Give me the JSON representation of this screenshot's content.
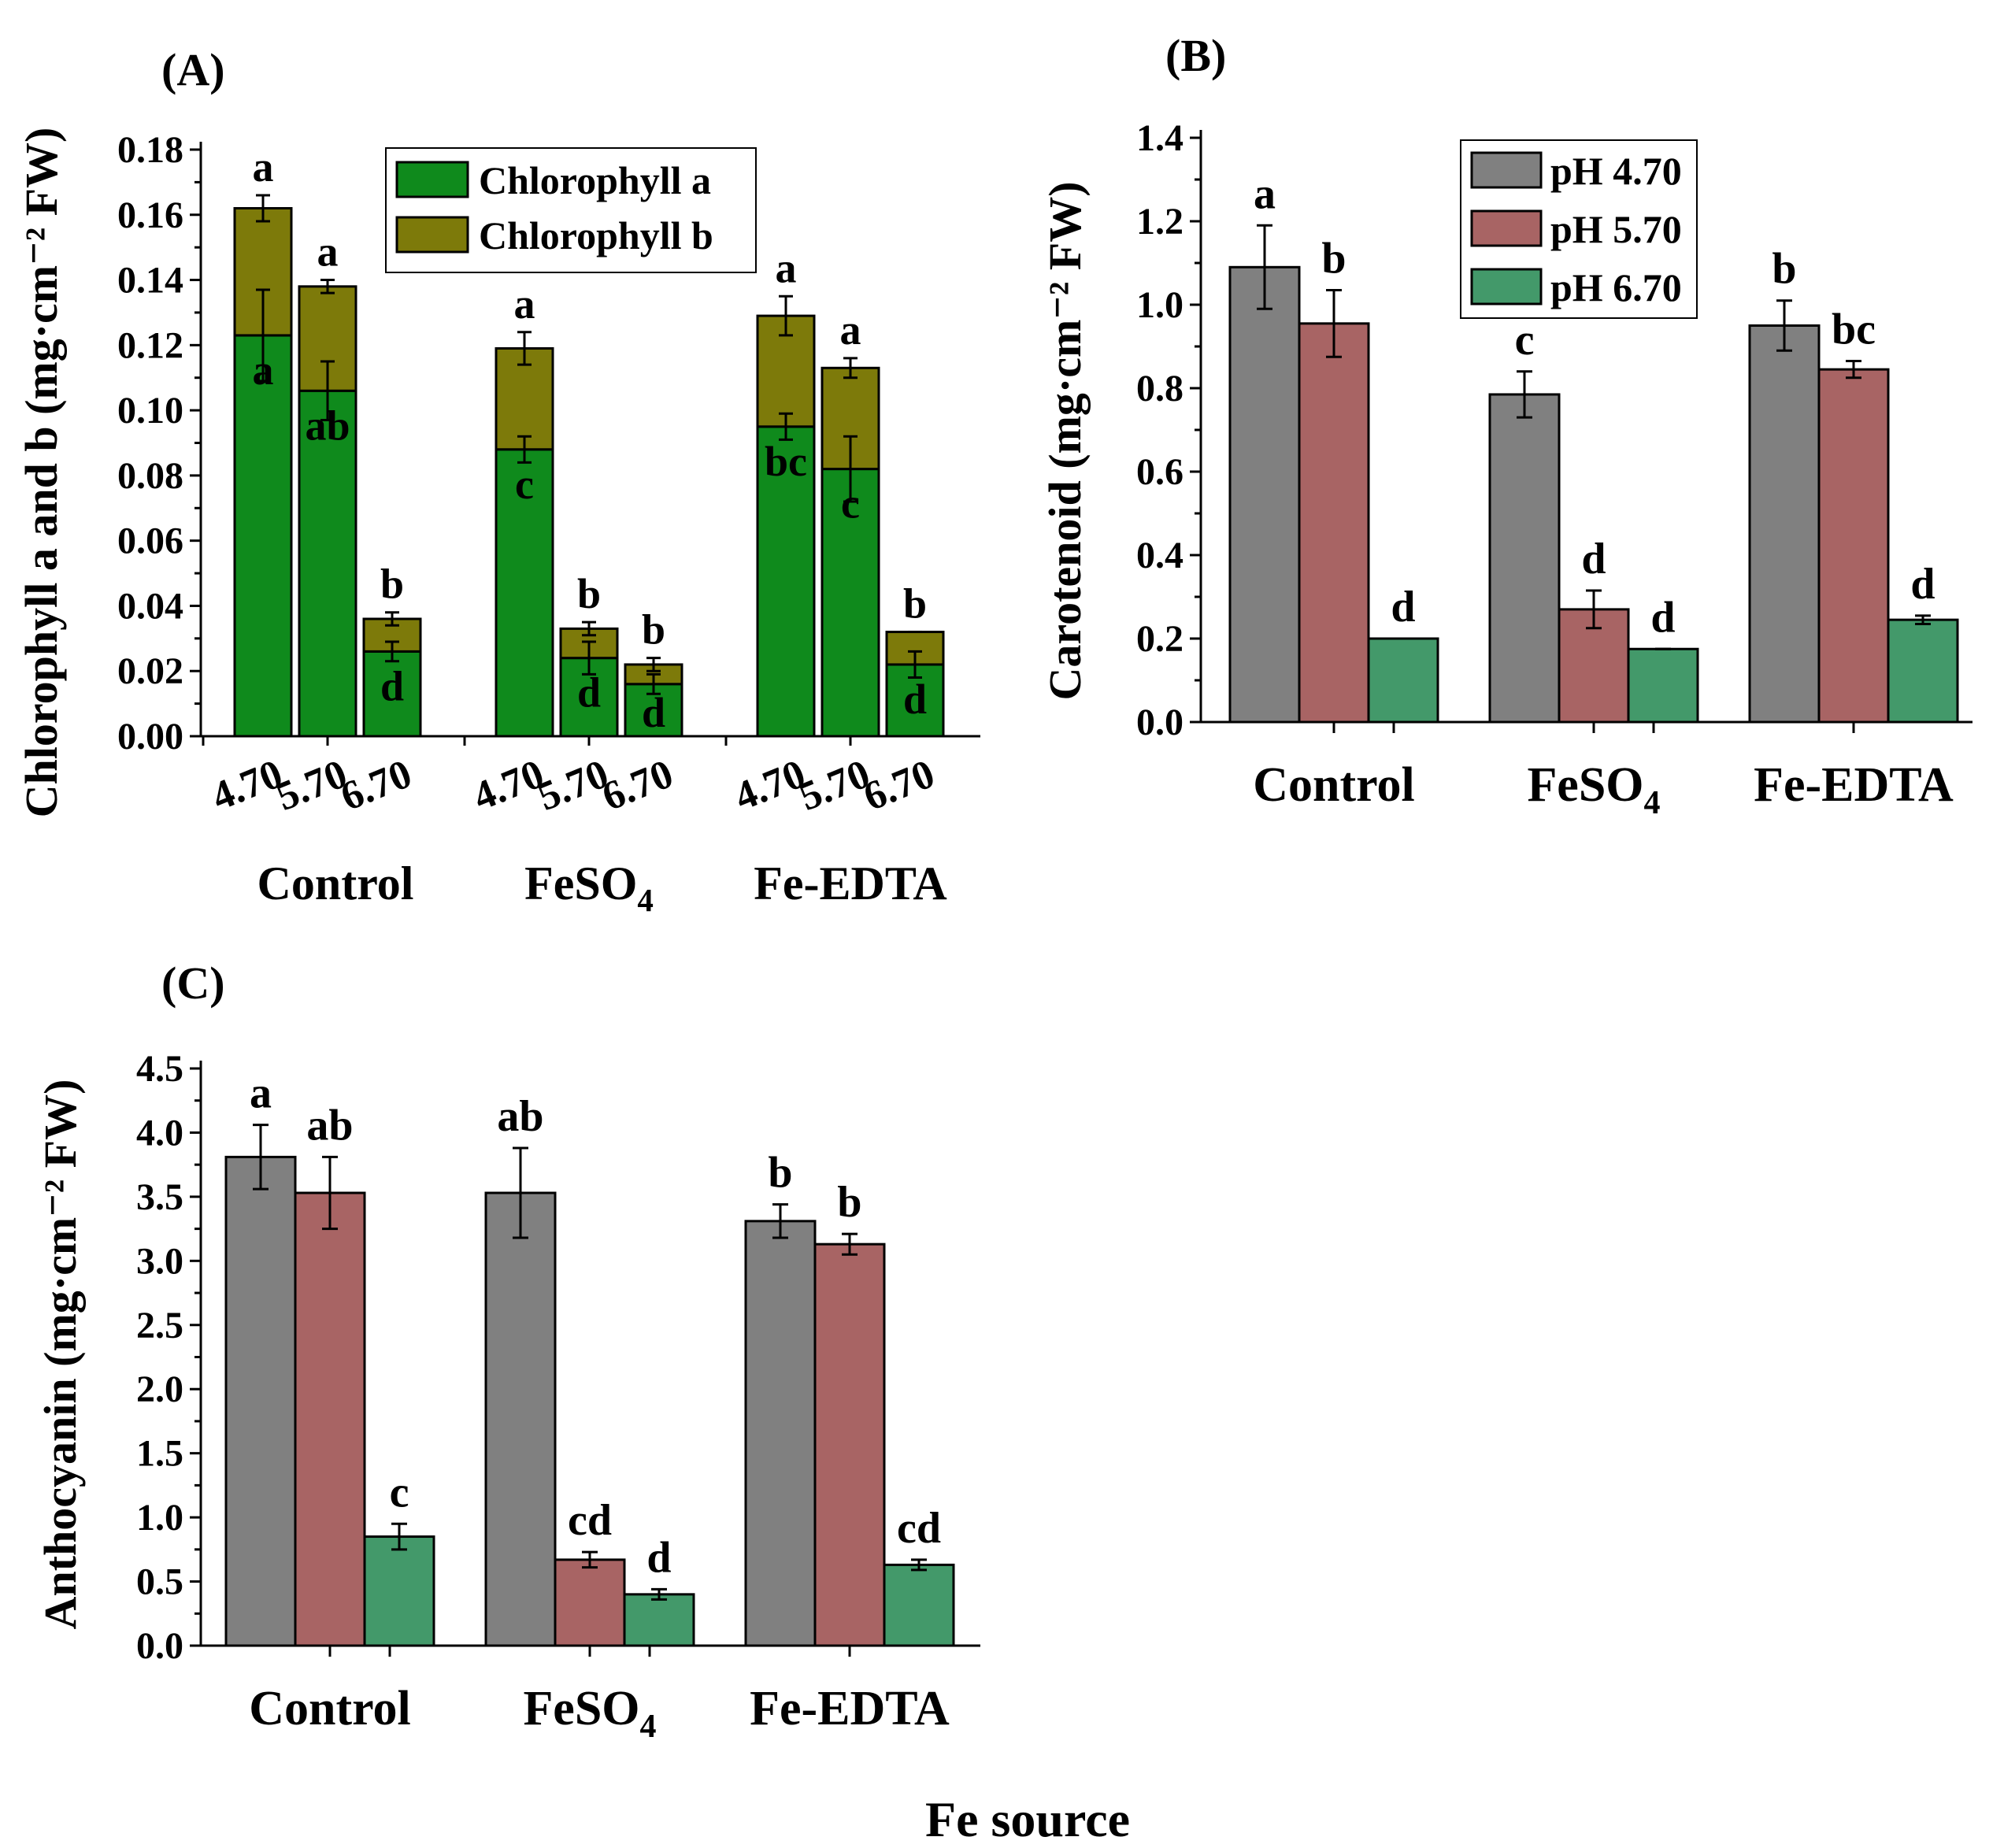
{
  "shared_xlabel": "Fe source",
  "colors": {
    "chl_a": "#0f8a1c",
    "chl_b": "#7d7a0a",
    "ph470": "#808080",
    "ph570": "#a86464",
    "ph670": "#43996a"
  },
  "chart_data": [
    {
      "panel": "(A)",
      "type": "bar",
      "stacked": true,
      "ylabel": "Chlorophyll a and b (mg·cm⁻² FW)",
      "ylim": [
        0,
        0.18
      ],
      "yticks": [
        "0.00",
        "0.02",
        "0.04",
        "0.06",
        "0.08",
        "0.10",
        "0.12",
        "0.14",
        "0.16",
        "0.18"
      ],
      "groups": [
        "Control",
        "FeSO₄",
        "Fe-EDTA"
      ],
      "subcategories": [
        "4.70",
        "5.70",
        "6.70"
      ],
      "legend": {
        "position": "top-right",
        "entries": [
          "Chlorophyll a",
          "Chlorophyll b"
        ]
      },
      "series": [
        {
          "name": "Chlorophyll a",
          "values": [
            0.123,
            0.106,
            0.026,
            0.088,
            0.024,
            0.016,
            0.095,
            0.082,
            0.022
          ],
          "errors": [
            0.014,
            0.009,
            0.003,
            0.004,
            0.005,
            0.003,
            0.004,
            0.01,
            0.004
          ],
          "letters": [
            "a",
            "ab",
            "d",
            "c",
            "d",
            "d",
            "bc",
            "c",
            "d"
          ]
        },
        {
          "name": "Chlorophyll b",
          "values": [
            0.039,
            0.032,
            0.01,
            0.031,
            0.009,
            0.006,
            0.034,
            0.031,
            0.01
          ],
          "errors": [
            0.004,
            0.002,
            0.002,
            0.005,
            0.002,
            0.002,
            0.006,
            0.003,
            0.0
          ],
          "letters": [
            "a",
            "a",
            "b",
            "a",
            "b",
            "b",
            "a",
            "a",
            "b"
          ]
        }
      ]
    },
    {
      "panel": "(B)",
      "type": "bar",
      "ylabel": "Carotenoid (mg·cm⁻² FW)",
      "ylim": [
        0,
        1.4
      ],
      "yticks": [
        "0.0",
        "0.2",
        "0.4",
        "0.6",
        "0.8",
        "1.0",
        "1.2",
        "1.4"
      ],
      "categories": [
        "Control",
        "FeSO₄",
        "Fe-EDTA"
      ],
      "legend": {
        "position": "top-center",
        "entries": [
          "pH 4.70",
          "pH 5.70",
          "pH 6.70"
        ]
      },
      "series": [
        {
          "name": "pH 4.70",
          "values": [
            1.09,
            0.785,
            0.95
          ],
          "errors": [
            0.1,
            0.055,
            0.06
          ],
          "letters": [
            "a",
            "c",
            "b"
          ]
        },
        {
          "name": "pH 5.70",
          "values": [
            0.955,
            0.27,
            0.845
          ],
          "errors": [
            0.08,
            0.045,
            0.02
          ],
          "letters": [
            "b",
            "d",
            "bc"
          ]
        },
        {
          "name": "pH 6.70",
          "values": [
            0.2,
            0.175,
            0.245
          ],
          "errors": [
            0.0,
            0.0,
            0.01
          ],
          "letters": [
            "d",
            "d",
            "d"
          ]
        }
      ]
    },
    {
      "panel": "(C)",
      "type": "bar",
      "ylabel": "Anthocyanin (mg·cm⁻² FW)",
      "ylim": [
        0,
        4.5
      ],
      "yticks": [
        "0.0",
        "0.5",
        "1.0",
        "1.5",
        "2.0",
        "2.5",
        "3.0",
        "3.5",
        "4.0",
        "4.5"
      ],
      "categories": [
        "Control",
        "FeSO₄",
        "Fe-EDTA"
      ],
      "series": [
        {
          "name": "pH 4.70",
          "values": [
            3.81,
            3.53,
            3.31
          ],
          "errors": [
            0.25,
            0.35,
            0.13
          ],
          "letters": [
            "a",
            "ab",
            "b"
          ]
        },
        {
          "name": "pH 5.70",
          "values": [
            3.53,
            0.67,
            3.13
          ],
          "errors": [
            0.28,
            0.06,
            0.08
          ],
          "letters": [
            "ab",
            "cd",
            "b"
          ]
        },
        {
          "name": "pH 6.70",
          "values": [
            0.85,
            0.4,
            0.63
          ],
          "errors": [
            0.1,
            0.04,
            0.04
          ],
          "letters": [
            "c",
            "d",
            "cd"
          ]
        }
      ]
    }
  ]
}
